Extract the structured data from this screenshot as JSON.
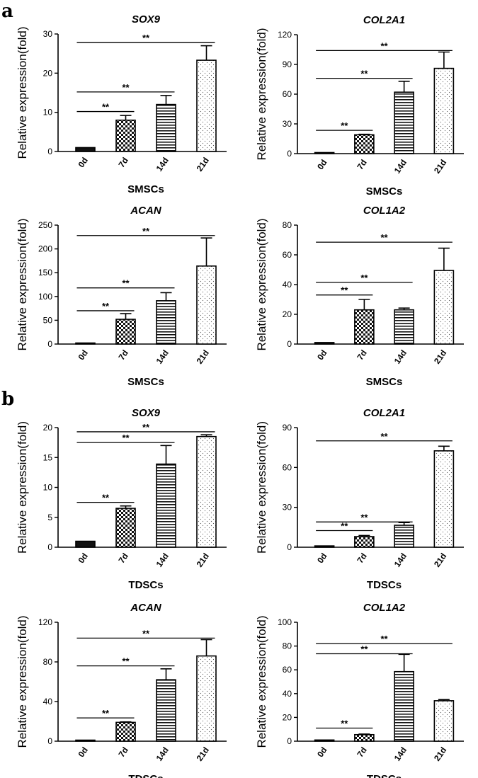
{
  "panels": [
    {
      "label": "a",
      "group": "SMSCs"
    },
    {
      "label": "b",
      "group": "TDSCs"
    }
  ],
  "chart_data": [
    {
      "type": "bar",
      "panel": "a",
      "title": "SOX9",
      "ylabel": "Relative expression(fold)",
      "xlabel": "SMSCs",
      "categories": [
        "0d",
        "7d",
        "14d",
        "21d"
      ],
      "values": [
        1,
        8,
        12,
        23.3
      ],
      "errors": [
        0,
        1.2,
        2.3,
        3.7
      ],
      "ylim": [
        0,
        30
      ],
      "yticks": [
        0,
        10,
        20,
        30
      ],
      "significance": [
        {
          "from": "0d",
          "to": "7d",
          "y": 10.2,
          "label": "**"
        },
        {
          "from": "0d",
          "to": "14d",
          "y": 15.2,
          "label": "**"
        },
        {
          "from": "0d",
          "to": "21d",
          "y": 27.8,
          "label": "**"
        }
      ]
    },
    {
      "type": "bar",
      "panel": "a",
      "title": "COL2A1",
      "ylabel": "Relative expression(fold)",
      "xlabel": "SMSCs",
      "categories": [
        "0d",
        "7d",
        "14d",
        "21d"
      ],
      "values": [
        1,
        19,
        62,
        86
      ],
      "errors": [
        0,
        0.5,
        11,
        16.5
      ],
      "ylim": [
        0,
        120
      ],
      "yticks": [
        0,
        30,
        60,
        90,
        120
      ],
      "significance": [
        {
          "from": "0d",
          "to": "7d",
          "y": 23.5,
          "label": "**"
        },
        {
          "from": "0d",
          "to": "14d",
          "y": 76,
          "label": "**"
        },
        {
          "from": "0d",
          "to": "21d",
          "y": 104,
          "label": "**"
        }
      ]
    },
    {
      "type": "bar",
      "panel": "a",
      "title": "ACAN",
      "ylabel": "Relative expression(fold)",
      "xlabel": "SMSCs",
      "categories": [
        "0d",
        "7d",
        "14d",
        "21d"
      ],
      "values": [
        1,
        52,
        91,
        164
      ],
      "errors": [
        0,
        12,
        17,
        59
      ],
      "ylim": [
        0,
        250
      ],
      "yticks": [
        0,
        50,
        100,
        150,
        200,
        250
      ],
      "significance": [
        {
          "from": "0d",
          "to": "7d",
          "y": 70,
          "label": "**"
        },
        {
          "from": "0d",
          "to": "14d",
          "y": 118,
          "label": "**"
        },
        {
          "from": "0d",
          "to": "21d",
          "y": 228,
          "label": "**"
        }
      ]
    },
    {
      "type": "bar",
      "panel": "a",
      "title": "COL1A2",
      "ylabel": "Relative expression(fold)",
      "xlabel": "SMSCs",
      "categories": [
        "0d",
        "7d",
        "14d",
        "21d"
      ],
      "values": [
        1,
        23,
        23,
        49.5
      ],
      "errors": [
        0,
        7,
        1.2,
        15
      ],
      "ylim": [
        0,
        80
      ],
      "yticks": [
        0,
        20,
        40,
        60,
        80
      ],
      "significance": [
        {
          "from": "0d",
          "to": "7d",
          "y": 33,
          "label": "**"
        },
        {
          "from": "0d",
          "to": "14d",
          "y": 41.5,
          "label": "**"
        },
        {
          "from": "0d",
          "to": "21d",
          "y": 68.5,
          "label": "**"
        }
      ]
    },
    {
      "type": "bar",
      "panel": "b",
      "title": "SOX9",
      "ylabel": "Relative expression(fold)",
      "xlabel": "TDSCs",
      "categories": [
        "0d",
        "7d",
        "14d",
        "21d"
      ],
      "values": [
        1,
        6.5,
        13.9,
        18.5
      ],
      "errors": [
        0,
        0.4,
        3.1,
        0.3
      ],
      "ylim": [
        0,
        20
      ],
      "yticks": [
        0,
        5,
        10,
        15,
        20
      ],
      "significance": [
        {
          "from": "0d",
          "to": "7d",
          "y": 7.5,
          "label": "**"
        },
        {
          "from": "0d",
          "to": "14d",
          "y": 17.5,
          "label": "**"
        },
        {
          "from": "0d",
          "to": "21d",
          "y": 19.3,
          "label": "**"
        }
      ]
    },
    {
      "type": "bar",
      "panel": "b",
      "title": "COL2A1",
      "ylabel": "Relative expression(fold)",
      "xlabel": "TDSCs",
      "categories": [
        "0d",
        "7d",
        "14d",
        "21d"
      ],
      "values": [
        1,
        8,
        16.5,
        72.5
      ],
      "errors": [
        0,
        0.8,
        2,
        3.5
      ],
      "ylim": [
        0,
        90
      ],
      "yticks": [
        0,
        30,
        60,
        90
      ],
      "significance": [
        {
          "from": "0d",
          "to": "7d",
          "y": 12.5,
          "label": "**"
        },
        {
          "from": "0d",
          "to": "14d",
          "y": 19,
          "label": "**"
        },
        {
          "from": "0d",
          "to": "21d",
          "y": 80,
          "label": "**"
        }
      ]
    },
    {
      "type": "bar",
      "panel": "b",
      "title": "ACAN",
      "ylabel": "Relative expression(fold)",
      "xlabel": "TDSCs",
      "categories": [
        "0d",
        "7d",
        "14d",
        "21d"
      ],
      "values": [
        1,
        19,
        62,
        86
      ],
      "errors": [
        0,
        0.5,
        11,
        16.5
      ],
      "ylim": [
        0,
        120
      ],
      "yticks": [
        0,
        40,
        80,
        120
      ],
      "significance": [
        {
          "from": "0d",
          "to": "7d",
          "y": 23.5,
          "label": "**"
        },
        {
          "from": "0d",
          "to": "14d",
          "y": 76,
          "label": "**"
        },
        {
          "from": "0d",
          "to": "21d",
          "y": 104,
          "label": "**"
        }
      ]
    },
    {
      "type": "bar",
      "panel": "b",
      "title": "COL1A2",
      "ylabel": "Relative expression(fold)",
      "xlabel": "TDSCs",
      "categories": [
        "0d",
        "7d",
        "14d",
        "21d"
      ],
      "values": [
        1,
        5.5,
        58.5,
        34
      ],
      "errors": [
        0,
        0.5,
        14.5,
        1
      ],
      "ylim": [
        0,
        100
      ],
      "yticks": [
        0,
        20,
        40,
        60,
        80,
        100
      ],
      "significance": [
        {
          "from": "0d",
          "to": "7d",
          "y": 11,
          "label": "**"
        },
        {
          "from": "0d",
          "to": "14d",
          "y": 73.5,
          "label": "**"
        },
        {
          "from": "0d",
          "to": "21d",
          "y": 82,
          "label": "**"
        }
      ]
    }
  ]
}
